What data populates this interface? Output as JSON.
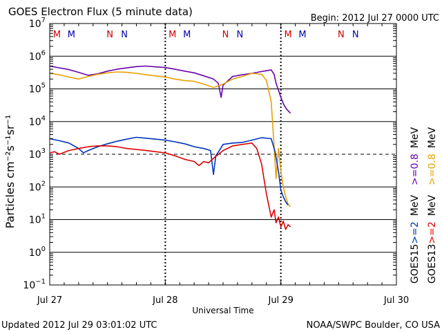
{
  "chart_data": {
    "type": "line",
    "title": "GOES Electron Flux (5 minute data)",
    "begin_label": "Begin: 2012 Jul 27 0000 UTC",
    "updated_label": "Updated 2012 Jul 29 03:01:02 UTC",
    "credit_label": "NOAA/SWPC Boulder, CO USA",
    "xlabel": "Universal Time",
    "ylabel": "Particles cm⁻²s⁻¹sr⁻¹",
    "x_unit": "hours since 2012 Jul 27 0000 UTC",
    "xlim": [
      0,
      72
    ],
    "x_ticks": [
      {
        "value": 0,
        "label": "Jul 27"
      },
      {
        "value": 24,
        "label": "Jul 28"
      },
      {
        "value": 48,
        "label": "Jul 29"
      },
      {
        "value": 72,
        "label": "Jul 30"
      }
    ],
    "y_scale": "log10",
    "ylim_exp": [
      -1,
      7
    ],
    "y_ticks": [
      {
        "exp": 7,
        "base": "10",
        "sup": "7"
      },
      {
        "exp": 6,
        "base": "10",
        "sup": "6"
      },
      {
        "exp": 5,
        "base": "10",
        "sup": "5"
      },
      {
        "exp": 4,
        "base": "10",
        "sup": "4"
      },
      {
        "exp": 3,
        "base": "10",
        "sup": "3"
      },
      {
        "exp": 2,
        "base": "10",
        "sup": "2"
      },
      {
        "exp": 1,
        "base": "10",
        "sup": "1"
      },
      {
        "exp": 0,
        "base": "10",
        "sup": "0"
      },
      {
        "exp": -1,
        "base": "10",
        "sup": "−1"
      }
    ],
    "threshold_exp": 3,
    "markers": [
      {
        "hour": 1.5,
        "label": "M",
        "color": "#cc0000"
      },
      {
        "hour": 4.5,
        "label": "M",
        "color": "#0000aa"
      },
      {
        "hour": 12.5,
        "label": "N",
        "color": "#cc0000"
      },
      {
        "hour": 15.5,
        "label": "N",
        "color": "#0000aa"
      },
      {
        "hour": 25.5,
        "label": "M",
        "color": "#cc0000"
      },
      {
        "hour": 28.5,
        "label": "M",
        "color": "#0000aa"
      },
      {
        "hour": 36.5,
        "label": "N",
        "color": "#cc0000"
      },
      {
        "hour": 39.5,
        "label": "N",
        "color": "#0000aa"
      },
      {
        "hour": 49.5,
        "label": "M",
        "color": "#cc0000"
      },
      {
        "hour": 52.5,
        "label": "M",
        "color": "#0000aa"
      },
      {
        "hour": 60.5,
        "label": "N",
        "color": "#cc0000"
      },
      {
        "hour": 63.5,
        "label": "N",
        "color": "#0000aa"
      }
    ],
    "legend": [
      {
        "satellite": "GOES13",
        "label": ">=2",
        "suffix": "MeV",
        "color": "#dd0000"
      },
      {
        "satellite": "GOES13",
        "label": ">=0.8",
        "suffix": "MeV",
        "color": "#e8a000"
      },
      {
        "satellite": "GOES15",
        "label": ">=2",
        "suffix": "MeV",
        "color": "#0033bb"
      },
      {
        "satellite": "GOES15",
        "label": ">=0.8",
        "suffix": "MeV",
        "color": "#6600aa"
      }
    ],
    "series": [
      {
        "name": "GOES15 >=0.8 MeV",
        "color": "#6600aa",
        "x": [
          0,
          2,
          4,
          6,
          8,
          10,
          12,
          14,
          16,
          18,
          20,
          22,
          24,
          26,
          28,
          30,
          32,
          34,
          35,
          35.6,
          36,
          38,
          40,
          42,
          44,
          46,
          46.6,
          47,
          48,
          48.6,
          49.2,
          50
        ],
        "y": [
          500000,
          440000,
          390000,
          320000,
          260000,
          290000,
          350000,
          400000,
          440000,
          480000,
          500000,
          470000,
          450000,
          400000,
          350000,
          310000,
          250000,
          200000,
          150000,
          55000,
          130000,
          240000,
          270000,
          300000,
          340000,
          380000,
          280000,
          150000,
          55000,
          33000,
          24000,
          18000
        ]
      },
      {
        "name": "GOES13 >=0.8 MeV",
        "color": "#e8a000",
        "x": [
          0,
          2,
          4,
          6,
          8,
          10,
          12,
          14,
          16,
          18,
          20,
          22,
          24,
          26,
          28,
          30,
          32,
          34,
          36,
          38,
          40,
          42,
          44,
          45,
          46,
          46.5,
          47,
          47.5,
          48,
          48.5,
          49,
          49.5,
          50
        ],
        "y": [
          300000,
          270000,
          230000,
          200000,
          240000,
          280000,
          310000,
          330000,
          320000,
          300000,
          270000,
          250000,
          230000,
          200000,
          180000,
          170000,
          140000,
          110000,
          140000,
          200000,
          240000,
          300000,
          280000,
          180000,
          40000,
          3000,
          180,
          1500,
          300,
          100,
          50,
          30,
          25
        ]
      },
      {
        "name": "GOES15 >=2 MeV",
        "color": "#0033bb",
        "x": [
          0,
          2,
          4,
          6,
          7,
          8,
          10,
          12,
          14,
          16,
          18,
          20,
          22,
          24,
          26,
          28,
          30,
          32,
          33.4,
          34,
          34.5,
          35.5,
          36,
          38,
          40,
          42,
          44,
          46,
          46.8,
          47.5,
          48,
          48.5,
          49,
          49.5
        ],
        "y": [
          3000,
          2600,
          2200,
          1500,
          1100,
          1300,
          1700,
          2100,
          2500,
          2900,
          3300,
          3100,
          2900,
          2700,
          2400,
          2100,
          1700,
          1500,
          1300,
          240,
          900,
          1500,
          2000,
          2200,
          2300,
          2700,
          3200,
          3000,
          1200,
          300,
          80,
          50,
          35,
          28
        ]
      },
      {
        "name": "GOES13 >=2 MeV",
        "color": "#dd0000",
        "x": [
          0,
          1,
          2,
          4,
          6,
          8,
          10,
          12,
          14,
          16,
          18,
          20,
          22,
          24,
          26,
          28,
          30,
          31,
          32,
          33,
          34,
          36,
          38,
          40,
          42,
          43,
          44,
          45,
          46,
          46.6,
          47,
          47.5,
          48,
          48.5,
          49,
          49.5,
          50
        ],
        "y": [
          1100,
          1200,
          1000,
          1300,
          1500,
          1700,
          1800,
          1800,
          1700,
          1500,
          1400,
          1300,
          1200,
          1100,
          900,
          700,
          600,
          450,
          600,
          550,
          750,
          1300,
          1800,
          2000,
          2200,
          1500,
          500,
          60,
          12,
          20,
          8,
          12,
          6,
          9,
          5,
          7,
          6
        ]
      }
    ]
  }
}
